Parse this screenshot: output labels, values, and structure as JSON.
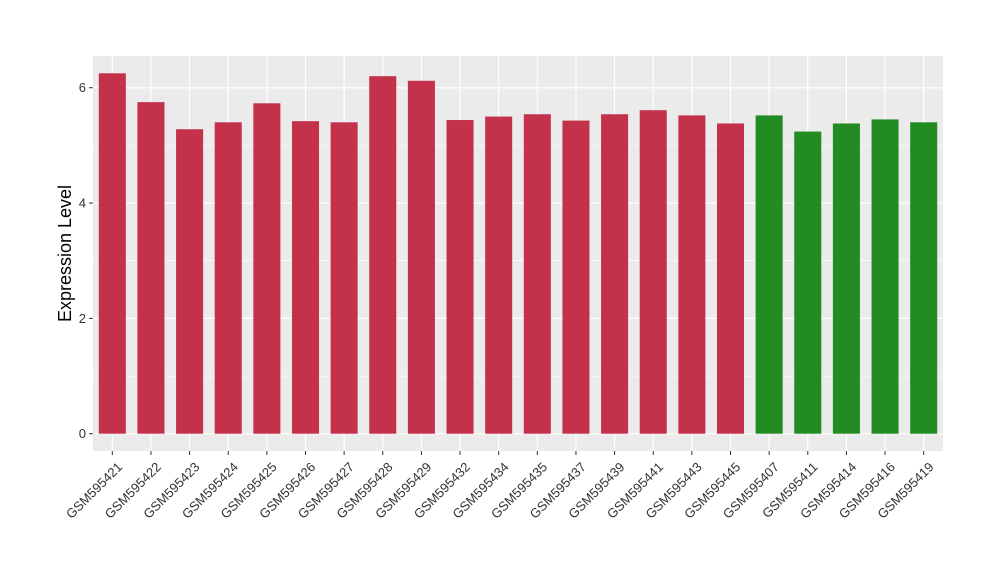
{
  "chart_data": {
    "type": "bar",
    "title": "",
    "xlabel": "",
    "ylabel": "Expression Level",
    "ylim": [
      -0.3,
      6.55
    ],
    "yticks": [
      0,
      2,
      4,
      6
    ],
    "grid": true,
    "categories": [
      "GSM595421",
      "GSM595422",
      "GSM595423",
      "GSM595424",
      "GSM595425",
      "GSM595426",
      "GSM595427",
      "GSM595428",
      "GSM595429",
      "GSM595432",
      "GSM595434",
      "GSM595435",
      "GSM595437",
      "GSM595439",
      "GSM595441",
      "GSM595443",
      "GSM595445",
      "GSM595407",
      "GSM595411",
      "GSM595414",
      "GSM595416",
      "GSM595419"
    ],
    "values": [
      6.25,
      5.75,
      5.28,
      5.4,
      5.73,
      5.42,
      5.4,
      6.2,
      6.12,
      5.44,
      5.5,
      5.54,
      5.43,
      5.54,
      5.61,
      5.52,
      5.38,
      5.52,
      5.24,
      5.38,
      5.45,
      5.4
    ],
    "group_colors": [
      "#c4314b",
      "#c4314b",
      "#c4314b",
      "#c4314b",
      "#c4314b",
      "#c4314b",
      "#c4314b",
      "#c4314b",
      "#c4314b",
      "#c4314b",
      "#c4314b",
      "#c4314b",
      "#c4314b",
      "#c4314b",
      "#c4314b",
      "#c4314b",
      "#c4314b",
      "#228b22",
      "#228b22",
      "#228b22",
      "#228b22",
      "#228b22"
    ],
    "panel_background": "#ebebeb",
    "grid_color": "#ffffff"
  }
}
